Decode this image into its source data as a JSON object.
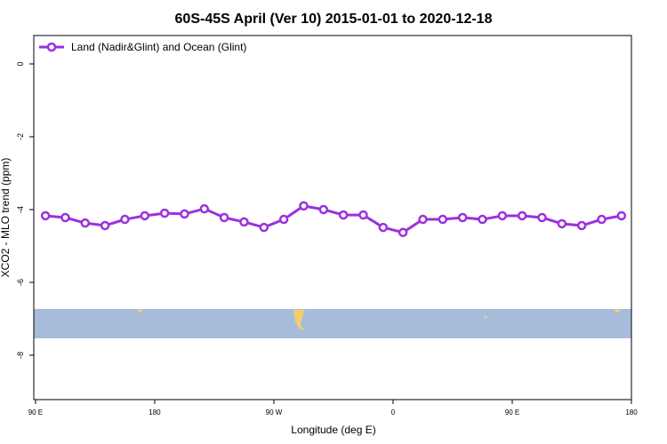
{
  "chart_data": {
    "type": "line",
    "title": "60S-45S April (Ver 10)   2015-01-01 to 2020-12-18",
    "x_label": "Longitude (deg E)",
    "y_label": "XCO2 - MLO trend (ppm)",
    "xlim": [
      88.7,
      540
    ],
    "ylim": [
      -9.22,
      0.78
    ],
    "xticks": [
      {
        "value": 90,
        "label": "90 E"
      },
      180,
      {
        "value": 270,
        "label": "90 W"
      },
      {
        "value": 360,
        "label": "0"
      },
      {
        "value": 450,
        "label": "90 E"
      },
      {
        "value": 540,
        "label": "180"
      }
    ],
    "yticks": [
      0,
      -2,
      -4,
      -6,
      -8
    ],
    "legend": "top-left",
    "x": [
      97.5,
      112.5,
      127.5,
      142.5,
      157.5,
      172.5,
      187.5,
      202.5,
      217.5,
      232.5,
      247.5,
      262.5,
      277.5,
      292.5,
      307.5,
      322.5,
      337.5,
      352.5,
      367.5,
      382.5,
      397.5,
      412.5,
      427.5,
      442.5,
      457.5,
      472.5,
      487.5,
      502.5,
      517.5,
      532.5
    ],
    "series": [
      {
        "name": "Land (Nadir&Glint) and Ocean (Glint)",
        "color": "#9b30e0",
        "values": [
          -4.17,
          -4.22,
          -4.37,
          -4.44,
          -4.27,
          -4.17,
          -4.1,
          -4.12,
          -3.98,
          -4.22,
          -4.34,
          -4.49,
          -4.27,
          -3.9,
          -4.0,
          -4.15,
          -4.15,
          -4.49,
          -4.63,
          -4.27,
          -4.27,
          -4.22,
          -4.27,
          -4.17,
          -4.17,
          -4.22,
          -4.39,
          -4.44,
          -4.27,
          -4.17
        ]
      }
    ]
  }
}
